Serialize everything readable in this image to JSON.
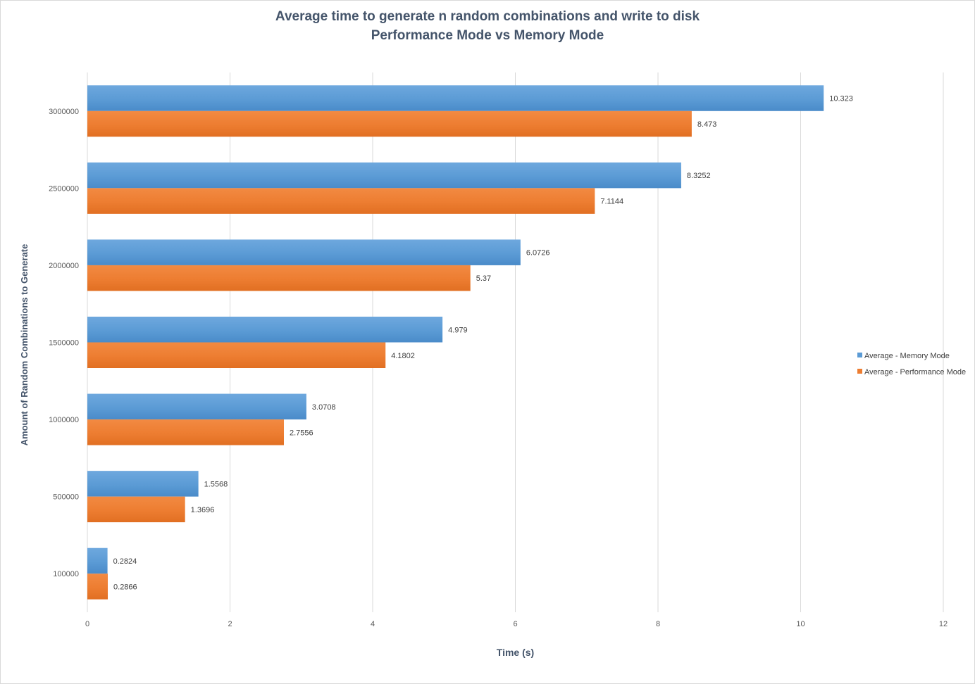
{
  "chart_data": {
    "type": "bar",
    "orientation": "horizontal",
    "title": [
      "Average time to generate n random combinations and write to disk",
      "Performance Mode vs Memory Mode"
    ],
    "xlabel": "Time (s)",
    "ylabel": "Amount of Random Combinations to Generate",
    "xlim": [
      0,
      12
    ],
    "xticks": [
      "0",
      "2",
      "4",
      "6",
      "8",
      "10",
      "12"
    ],
    "grid": "vertical",
    "legend_position": "right",
    "categories": [
      "100000",
      "500000",
      "1000000",
      "1500000",
      "2000000",
      "2500000",
      "3000000"
    ],
    "series": [
      {
        "name": "Average - Memory Mode",
        "color": "#5b9bd5",
        "values": [
          0.2824,
          1.5568,
          3.0708,
          4.979,
          6.0726,
          8.3252,
          10.323
        ],
        "labels": [
          "0.2824",
          "1.5568",
          "3.0708",
          "4.979",
          "6.0726",
          "8.3252",
          "10.323"
        ]
      },
      {
        "name": "Average - Performance Mode",
        "color": "#ed7d31",
        "values": [
          0.2866,
          1.3696,
          2.7556,
          4.1802,
          5.37,
          7.1144,
          8.473
        ],
        "labels": [
          "0.2866",
          "1.3696",
          "2.7556",
          "4.1802",
          "5.37",
          "7.1144",
          "8.473"
        ]
      }
    ]
  }
}
